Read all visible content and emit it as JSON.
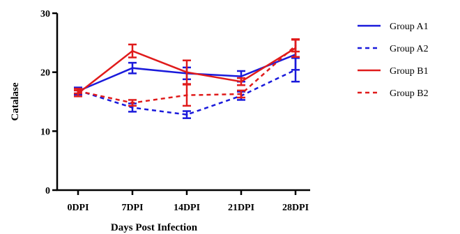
{
  "chart_data": {
    "type": "line",
    "xlabel": "Days Post Infection",
    "ylabel": "Catalase",
    "categories": [
      "0DPI",
      "7DPI",
      "14DPI",
      "21DPI",
      "28DPI"
    ],
    "ylim": [
      0,
      30
    ],
    "yticks": [
      0,
      10,
      20,
      30
    ],
    "grid": false,
    "legend_position": "right",
    "error_bars": true,
    "series": [
      {
        "name": "Group A1",
        "color": "#1a1adb",
        "dash": "solid",
        "values": [
          16.8,
          20.7,
          19.8,
          19.3,
          23.0
        ],
        "errors": [
          0.6,
          0.9,
          1.0,
          0.9,
          2.6
        ]
      },
      {
        "name": "Group A2",
        "color": "#1a1adb",
        "dash": "dashed",
        "values": [
          16.9,
          14.0,
          12.8,
          16.0,
          20.4
        ],
        "errors": [
          0.5,
          0.7,
          0.6,
          0.7,
          2.0
        ]
      },
      {
        "name": "Group B1",
        "color": "#e01b1b",
        "dash": "solid",
        "values": [
          16.4,
          23.6,
          20.0,
          18.4,
          24.1
        ],
        "errors": [
          0.5,
          1.1,
          2.0,
          0.6,
          1.5
        ]
      },
      {
        "name": "Group B2",
        "color": "#e01b1b",
        "dash": "dashed",
        "values": [
          16.8,
          14.8,
          16.1,
          16.3,
          24.5
        ],
        "errors": [
          0.4,
          0.5,
          1.8,
          0.6,
          1.0
        ]
      }
    ]
  }
}
